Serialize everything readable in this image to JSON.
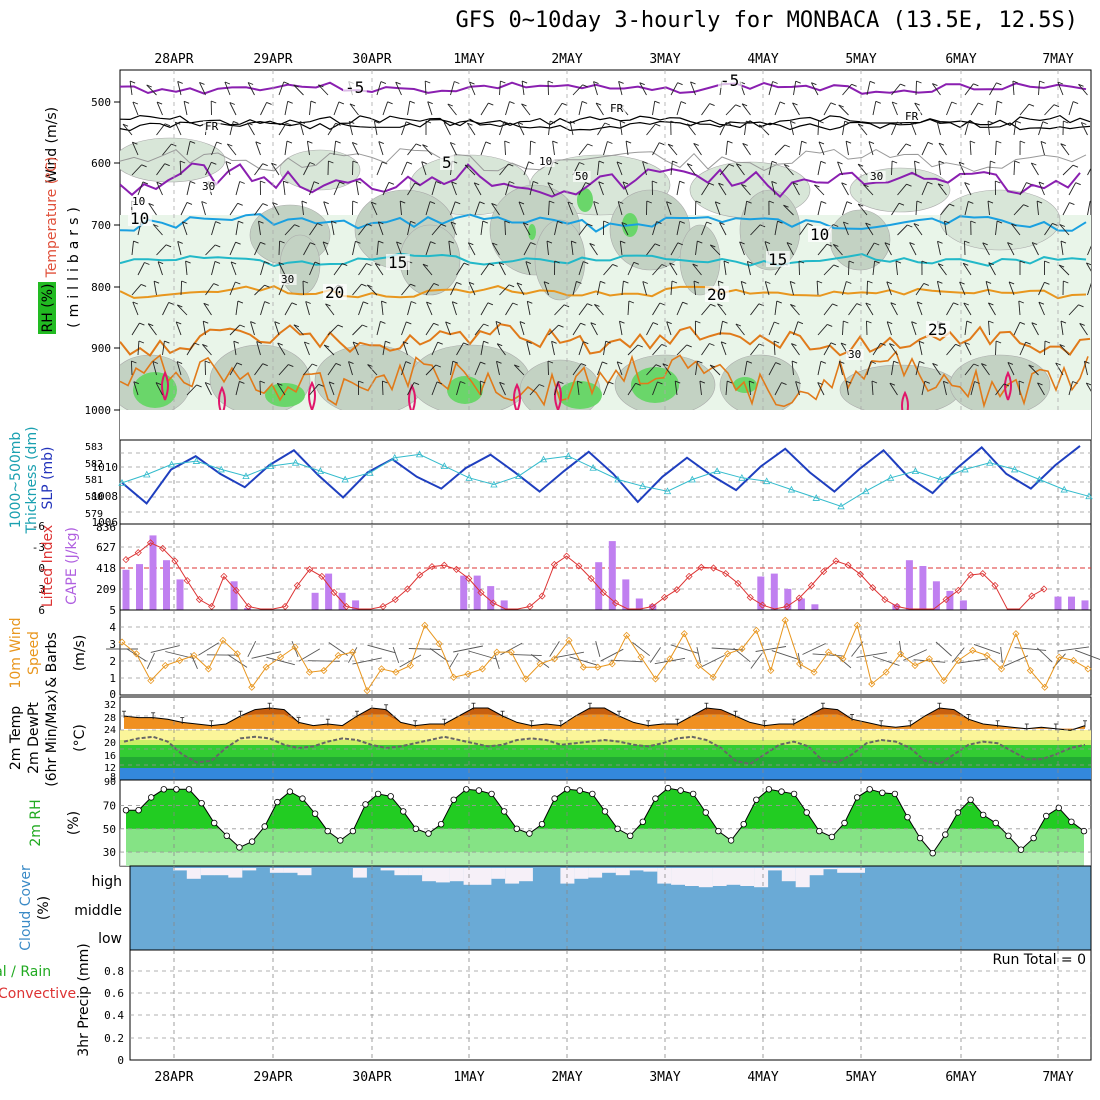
{
  "title": "GFS 0~10day 3-hourly for MONBACA (13.5E, 12.5S)",
  "dates": [
    "28APR",
    "29APR",
    "30APR",
    "1MAY",
    "2MAY",
    "3MAY",
    "4MAY",
    "5MAY",
    "6MAY",
    "7MAY"
  ],
  "upper": {
    "ylabel_wind": "Wind (m/s)",
    "ylabel_temp": "Temperature (°C)",
    "ylabel_rh": "RH (%)",
    "ylabel_mb": "(millibars)",
    "pressure_ticks": [
      "500",
      "600",
      "700",
      "800",
      "900",
      "1000"
    ],
    "contour_labels": [
      "-5",
      "-5",
      "FR",
      "FR",
      "FR",
      "5",
      "10",
      "10",
      "15",
      "15",
      "20",
      "20",
      "25",
      "10",
      "30",
      "30",
      "50",
      "30",
      "10",
      "30"
    ]
  },
  "slp": {
    "ylabel_thick": "Thickness (dm)",
    "ylabel_1000": "1000~500mb",
    "ylabel_slp": "SLP (mb)",
    "thick_ticks": [
      "583",
      "582",
      "581",
      "580",
      "579"
    ],
    "slp_ticks": [
      "1010",
      "1008",
      "1006"
    ]
  },
  "cape": {
    "ylabel_li": "Lifted Index",
    "ylabel_cape": "CAPE (J/kg)",
    "li_ticks": [
      "-6",
      "-3",
      "0",
      "3",
      "6"
    ],
    "cape_ticks": [
      "836",
      "627",
      "418",
      "209",
      "5"
    ]
  },
  "wind": {
    "ylabel_a": "10m Wind",
    "ylabel_b": "Speed",
    "ylabel_c": "& Barbs",
    "ylabel_d": "(m/s)",
    "ticks": [
      "4",
      "3",
      "2",
      "1",
      "0"
    ]
  },
  "temp": {
    "ylabel_a": "2m Temp",
    "ylabel_b": "2m DewPt",
    "ylabel_c": "(6hr Min/Max)",
    "ylabel_d": "(°C)",
    "ticks": [
      "32",
      "28",
      "24",
      "20",
      "16",
      "12",
      "8",
      "90"
    ]
  },
  "rh": {
    "ylabel_a": "2m RH",
    "ylabel_b": "(%)",
    "ticks": [
      "70",
      "50",
      "30"
    ]
  },
  "cloud": {
    "ylabel_a": "Cloud Cover",
    "ylabel_b": "(%)",
    "levels": [
      "high",
      "middle",
      "low"
    ]
  },
  "precip": {
    "ylabel_a": "Total / Rain",
    "ylabel_b": "Convective",
    "ylabel_c": "3hr Precip (mm)",
    "ticks": [
      "0.8",
      "0.6",
      "0.4",
      "0.2",
      "0"
    ],
    "run_total": "Run Total = 0"
  },
  "colors": {
    "slp_line": "#1f3fbf",
    "thick_line": "#33bbcc",
    "cape_bar": "#c080f0",
    "li_line": "#dd3333",
    "wind_line": "#e8961e",
    "rh_green": "#22cc22",
    "cloud_blue": "#6aaad6",
    "purple": "#8a1fb0",
    "blue_contour": "#1aa0e0",
    "orange_contour": "#e07a1a",
    "magenta": "#e0156a"
  },
  "chart_data": [
    {
      "type": "line",
      "panel": "slp",
      "series": [
        {
          "name": "SLP (mb)",
          "values": [
            1008.6,
            1007.2,
            1009.5,
            1010.4,
            1009.2,
            1008.3,
            1009.8,
            1010.8,
            1009.1,
            1007.6,
            1009.3,
            1010.2,
            1009.0,
            1008.2,
            1009.6,
            1010.5,
            1009.3,
            1008.0,
            1009.4,
            1010.7,
            1009.2,
            1007.3,
            1009.0,
            1010.3,
            1009.1,
            1008.1,
            1009.7,
            1010.9,
            1009.3,
            1008.0,
            1009.5,
            1010.8,
            1009.0,
            1007.9,
            1009.6,
            1011.0,
            1009.2,
            1008.2,
            1009.8,
            1011.1
          ]
        },
        {
          "name": "Thickness (dm)",
          "values": [
            580.8,
            581.3,
            581.9,
            582.1,
            581.6,
            581.2,
            581.8,
            582.0,
            581.5,
            581.0,
            581.4,
            582.3,
            582.5,
            581.8,
            581.1,
            580.7,
            581.2,
            582.2,
            582.4,
            581.7,
            581.0,
            580.6,
            580.3,
            581.0,
            581.5,
            581.1,
            580.9,
            580.4,
            579.9,
            579.4,
            580.3,
            581.1,
            581.5,
            581.0,
            581.6,
            582.0,
            581.6,
            581.0,
            580.4,
            580.0
          ]
        }
      ]
    },
    {
      "type": "bar",
      "panel": "cape",
      "series": [
        {
          "name": "CAPE (J/kg)",
          "values": [
            420,
            480,
            780,
            520,
            320,
            0,
            0,
            0,
            300,
            20,
            0,
            0,
            0,
            0,
            180,
            380,
            180,
            100,
            0,
            0,
            0,
            0,
            0,
            0,
            0,
            360,
            360,
            250,
            100,
            0,
            0,
            0,
            0,
            0,
            0,
            500,
            720,
            320,
            120,
            60,
            0,
            0,
            0,
            0,
            0,
            0,
            0,
            350,
            380,
            220,
            120,
            60,
            0,
            0,
            0,
            0,
            0,
            60,
            520,
            460,
            300,
            200,
            100,
            0,
            0,
            0,
            0,
            0,
            0,
            140,
            140,
            100
          ]
        },
        {
          "name": "Lifted Index",
          "values": [
            -1.2,
            -2.2,
            -3.6,
            -2.8,
            -1.0,
            1.8,
            4.5,
            5.5,
            1.2,
            3.2,
            5.5,
            6,
            6,
            5.5,
            2.5,
            0.2,
            1.2,
            3.5,
            5.5,
            6,
            6,
            5.5,
            4.5,
            3.0,
            1.0,
            -0.2,
            -0.4,
            0.2,
            1.5,
            3.5,
            5,
            6,
            6,
            5.5,
            4,
            -0.5,
            -1.7,
            -0.3,
            1.5,
            3.5,
            5,
            6,
            6,
            5.5,
            4.2,
            3.1,
            1.2,
            -0.1,
            0.0,
            0.8,
            2.2,
            4.2,
            5.3,
            6,
            5.5,
            4.3,
            2.5,
            0.5,
            -1.0,
            -0.4,
            0.9,
            2.8,
            4.5,
            5.5,
            6,
            6,
            6,
            4.5,
            3.2,
            1.0,
            0.8,
            2.5,
            6,
            6,
            4.0,
            3.0
          ]
        }
      ]
    },
    {
      "type": "line",
      "panel": "wind",
      "series": [
        {
          "name": "10m Wind Speed (m/s)",
          "values": [
            3.1,
            2.4,
            0.8,
            1.7,
            2.0,
            2.3,
            1.5,
            3.2,
            2.4,
            0.4,
            1.6,
            2.2,
            2.8,
            1.3,
            1.4,
            2.3,
            2.5,
            0.2,
            1.5,
            1.3,
            1.7,
            4.1,
            3.0,
            1.0,
            1.2,
            1.5,
            2.5,
            2.5,
            0.9,
            1.8,
            2.1,
            3.2,
            1.6,
            1.6,
            1.8,
            3.5,
            2.2,
            0.9,
            2.1,
            3.6,
            1.7,
            1.0,
            2.4,
            2.7,
            3.8,
            1.4,
            4.4,
            1.8,
            1.3,
            2.5,
            2.1,
            4.1,
            0.6,
            1.3,
            2.4,
            1.7,
            2.1,
            0.8,
            2.0,
            2.6,
            2.3,
            1.5,
            3.6,
            1.4,
            0.4,
            2.2,
            2.0,
            1.5
          ]
        }
      ]
    },
    {
      "type": "area",
      "panel": "temp",
      "series": [
        {
          "name": "2m Temp (°C)",
          "values": [
            28,
            27.5,
            27.5,
            27,
            26,
            25.5,
            25,
            25.5,
            28,
            30,
            30.5,
            30,
            26,
            25,
            25.5,
            25,
            28,
            30.5,
            30,
            26,
            25,
            25.5,
            25.5,
            28,
            30.5,
            30.5,
            28,
            26,
            25,
            25.5,
            25,
            28,
            30.5,
            30.5,
            28,
            26,
            25,
            25.5,
            25.5,
            28,
            30.5,
            30,
            28,
            26,
            25,
            25.5,
            25.5,
            28,
            30.5,
            30,
            27,
            26,
            25,
            24.5,
            25,
            28,
            30.5,
            30,
            27,
            25.5,
            25,
            24.5,
            24,
            24.5,
            24,
            23.5,
            25
          ]
        },
        {
          "name": "2m DewPt (°C)",
          "values": [
            20,
            21,
            21.5,
            20,
            16,
            13.5,
            14,
            18,
            21,
            21.5,
            21,
            19,
            18,
            18.5,
            20,
            21,
            20.5,
            19,
            18,
            18.5,
            19.5,
            20.5,
            21.5,
            20.5,
            19.5,
            18.5,
            19,
            20.5,
            21,
            20.5,
            19,
            19.5,
            20,
            20.5,
            20,
            19,
            18.5,
            19.5,
            21,
            21.5,
            20.5,
            18,
            14,
            13,
            16,
            19,
            20,
            18.5,
            14,
            13.5,
            16,
            19.5,
            20.5,
            20,
            18,
            14,
            13,
            16,
            19,
            20,
            19.5,
            17,
            14.5,
            14.5,
            16,
            18,
            19
          ]
        }
      ]
    },
    {
      "type": "area",
      "panel": "rh",
      "series": [
        {
          "name": "2m RH (%)",
          "values": [
            66,
            66,
            77,
            84,
            84,
            84,
            72,
            55,
            44,
            34,
            39,
            52,
            73,
            82,
            76,
            63,
            48,
            40,
            48,
            71,
            80,
            78,
            65,
            50,
            46,
            54,
            75,
            84,
            83,
            80,
            65,
            50,
            46,
            54,
            76,
            84,
            83,
            80,
            65,
            50,
            44,
            56,
            76,
            85,
            83,
            80,
            64,
            48,
            40,
            54,
            75,
            84,
            82,
            80,
            64,
            48,
            43,
            55,
            77,
            84,
            81,
            80,
            60,
            42,
            29,
            45,
            64,
            75,
            62,
            55,
            44,
            32,
            42,
            61,
            68,
            56,
            48
          ]
        }
      ]
    },
    {
      "type": "bar",
      "panel": "cloud",
      "series": [
        {
          "name": "high cloud (%)",
          "values": [
            10,
            45,
            30,
            30,
            40,
            10,
            0,
            20,
            20,
            30,
            0,
            0,
            0,
            40,
            0,
            10,
            30,
            30,
            55,
            60,
            55,
            70,
            70,
            45,
            65,
            55,
            0,
            0,
            65,
            45,
            40,
            20,
            30,
            10,
            15,
            65,
            70,
            75,
            80,
            75,
            70,
            75,
            80,
            10,
            55,
            80,
            30,
            5,
            20,
            20
          ]
        }
      ]
    },
    {
      "type": "bar",
      "panel": "precip",
      "ylim": [
        0,
        0.9
      ],
      "series": [
        {
          "name": "3hr Precip (mm)",
          "values": [
            0,
            0,
            0,
            0,
            0,
            0,
            0,
            0,
            0,
            0
          ]
        }
      ]
    }
  ]
}
